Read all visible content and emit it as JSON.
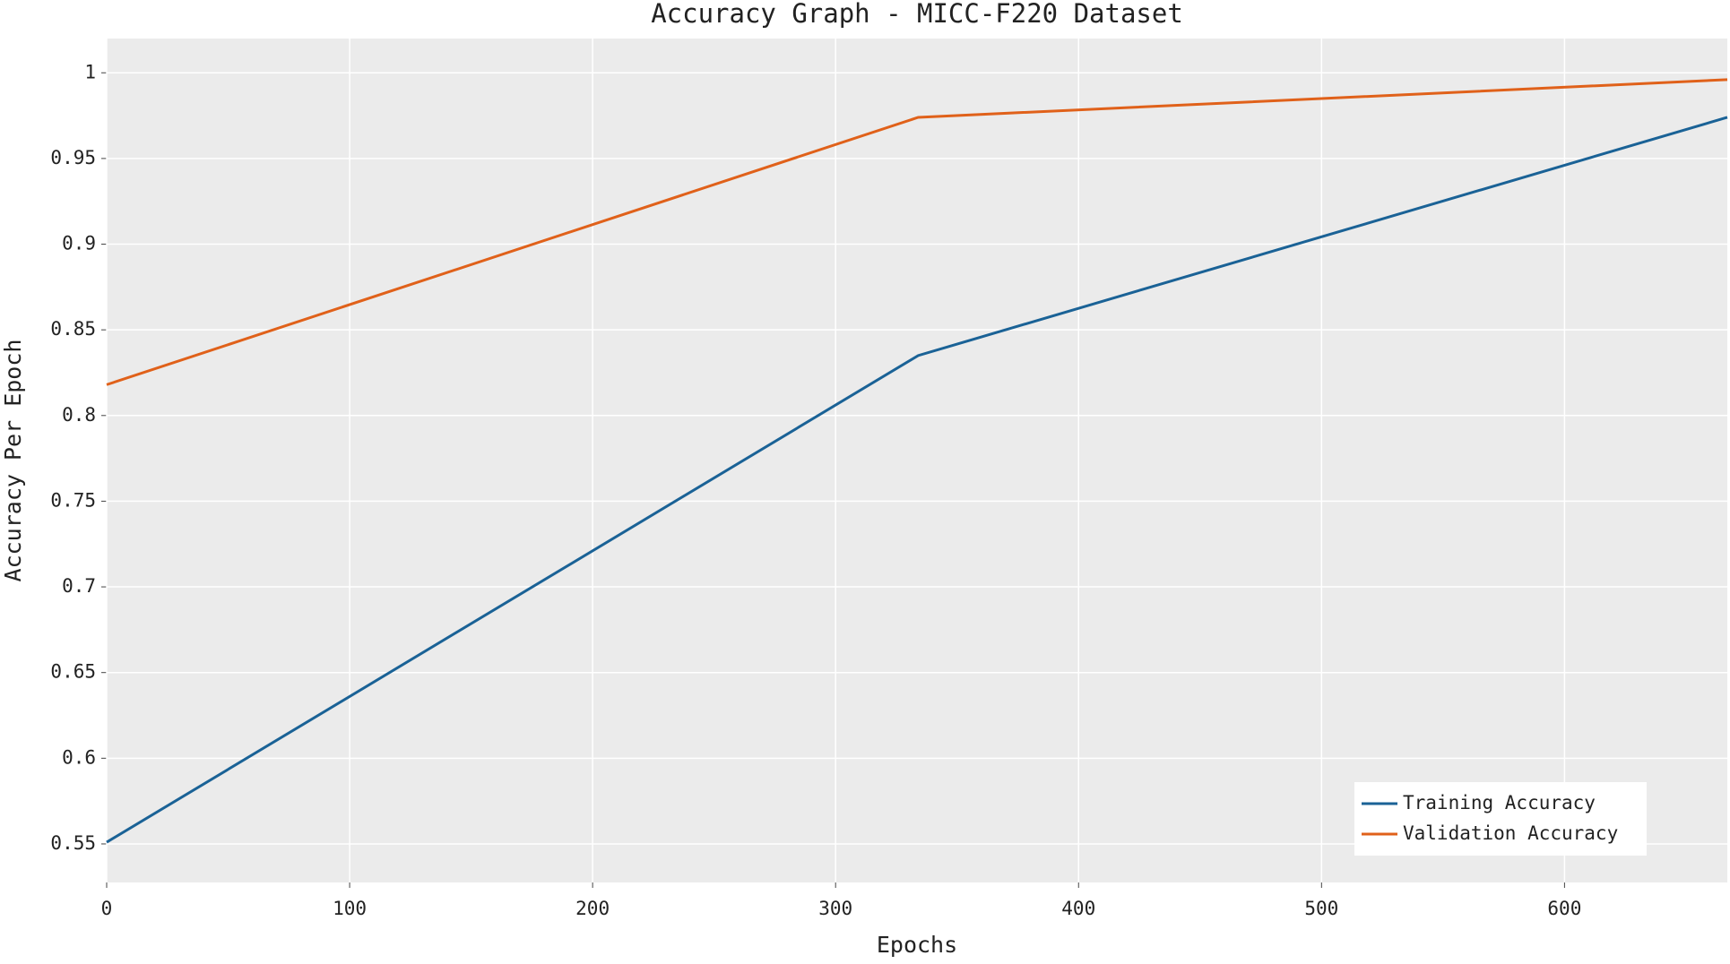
{
  "chart_data": {
    "type": "line",
    "title": "Accuracy Graph - MICC-F220 Dataset",
    "x_label": "Epochs",
    "y_label": "Accuracy Per Epoch",
    "x": [
      0,
      334,
      667
    ],
    "series": [
      {
        "name": "Training Accuracy",
        "color": "#1a6296",
        "values": [
          0.551,
          0.835,
          0.974
        ]
      },
      {
        "name": "Validation Accuracy",
        "color": "#e0611a",
        "values": [
          0.818,
          0.974,
          0.996
        ]
      }
    ],
    "xlim": [
      0,
      667
    ],
    "ylim": [
      0.5275,
      1.02
    ],
    "xticks": [
      0,
      100,
      200,
      300,
      400,
      500,
      600
    ],
    "yticks": [
      0.55,
      0.6,
      0.65,
      0.7,
      0.75,
      0.8,
      0.85,
      0.9,
      0.95,
      1
    ],
    "grid": true,
    "legend": "lower right"
  }
}
